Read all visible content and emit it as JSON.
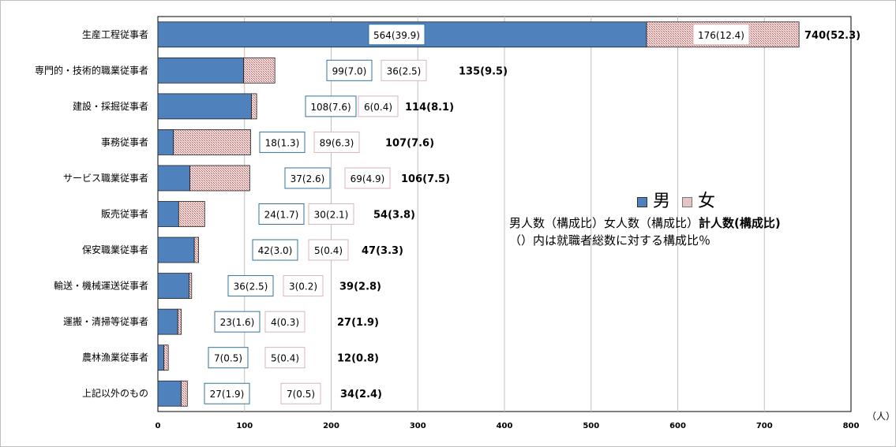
{
  "chart_data": {
    "type": "bar",
    "stacked": true,
    "orientation": "horizontal",
    "categories": [
      "生産工程従事者",
      "専門的・技術的職業従事者",
      "建設・採掘従事者",
      "事務従事者",
      "サービス職業従事者",
      "販売従事者",
      "保安職業従事者",
      "輸送・機械運送従事者",
      "運搬・清掃等従事者",
      "農林漁業従事者",
      "上記以外のもの"
    ],
    "series": [
      {
        "name": "男",
        "color": "#4f81bd",
        "values": [
          564,
          99,
          108,
          18,
          37,
          24,
          42,
          36,
          23,
          7,
          27
        ],
        "labels": [
          "564(39.9)",
          "99(7.0)",
          "108(7.6)",
          "18(1.3)",
          "37(2.6)",
          "24(1.7)",
          "42(3.0)",
          "36(2.5)",
          "23(1.6)",
          "7(0.5)",
          "27(1.9)"
        ]
      },
      {
        "name": "女",
        "color": "#c0504d",
        "values": [
          176,
          36,
          6,
          89,
          69,
          30,
          5,
          3,
          4,
          5,
          7
        ],
        "labels": [
          "176(12.4)",
          "36(2.5)",
          "6(0.4)",
          "89(6.3)",
          "69(4.9)",
          "30(2.1)",
          "5(0.4)",
          "3(0.2)",
          "4(0.3)",
          "5(0.4)",
          "7(0.5)"
        ]
      }
    ],
    "totals": [
      "740(52.3)",
      "135(9.5)",
      "114(8.1)",
      "107(7.6)",
      "106(7.5)",
      "54(3.8)",
      "47(3.3)",
      "39(2.8)",
      "27(1.9)",
      "12(0.8)",
      "34(2.4)"
    ],
    "xlim": [
      0,
      800
    ],
    "xticks": [
      "0",
      "100",
      "200",
      "300",
      "400",
      "500",
      "600",
      "700",
      "800"
    ],
    "xunit": "（人）",
    "grid": true,
    "legend": {
      "male": "男",
      "female": "女",
      "placement": "right"
    },
    "notes": [
      "男人数（構成比）女人数（構成比）",
      "計人数(構成比)",
      "（）内は就職者総数に対する構成比％"
    ]
  }
}
